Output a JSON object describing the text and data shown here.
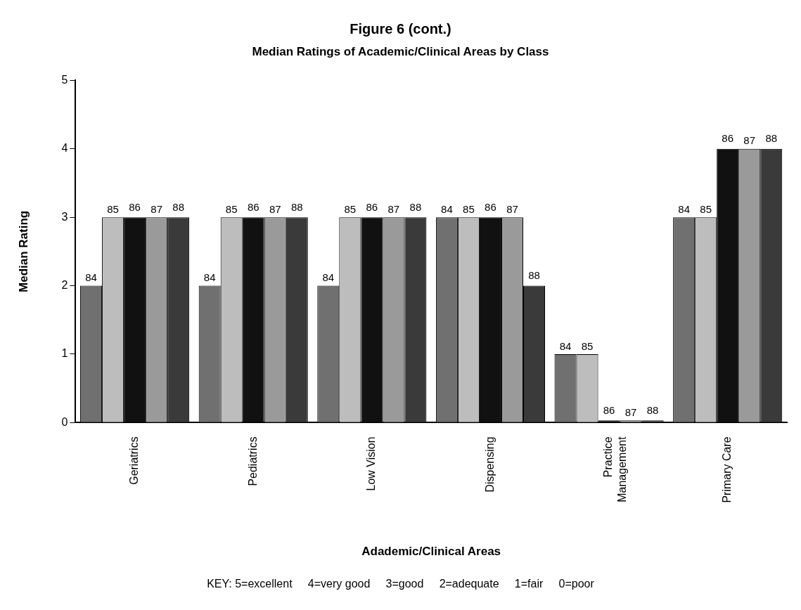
{
  "chart_data": {
    "type": "bar",
    "title": "Figure 6 (cont.)",
    "subtitle": "Median Ratings of Academic/Clinical Areas by Class",
    "xlabel": "Adademic/Clinical Areas",
    "ylabel": "Median Rating",
    "categories": [
      "Geriatrics",
      "Pediatrics",
      "Low Vision",
      "Dispensing",
      "Practice Management",
      "Primary Care"
    ],
    "series": [
      {
        "name": "84",
        "color": "#707070",
        "values": [
          2,
          2,
          2,
          3,
          1,
          3
        ]
      },
      {
        "name": "85",
        "color": "#bdbdbd",
        "values": [
          3,
          3,
          3,
          3,
          1,
          3
        ]
      },
      {
        "name": "86",
        "color": "#111111",
        "values": [
          3,
          3,
          3,
          3,
          0,
          4
        ]
      },
      {
        "name": "87",
        "color": "#9a9a9a",
        "values": [
          3,
          3,
          3,
          3,
          0,
          4
        ]
      },
      {
        "name": "88",
        "color": "#3a3a3a",
        "values": [
          3,
          3,
          3,
          2,
          0,
          4
        ]
      }
    ],
    "ylim": [
      0,
      5
    ],
    "yticks": [
      0,
      1,
      2,
      3,
      4,
      5
    ],
    "grid": false,
    "legend": false,
    "annotations": [
      "KEY: 5=excellent     4=very good     3=good     2=adequate     1=fair     0=poor"
    ]
  }
}
